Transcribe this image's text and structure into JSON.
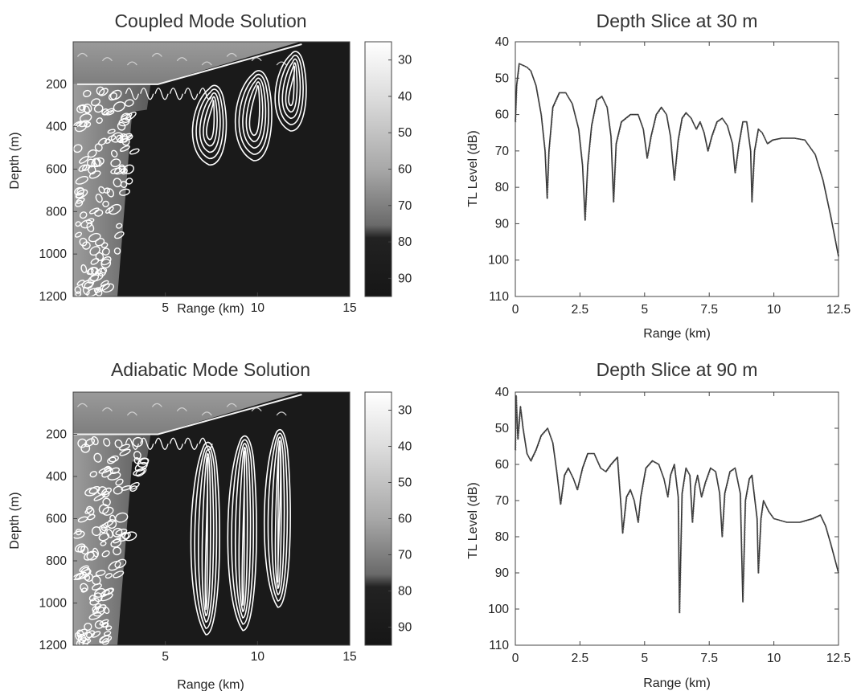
{
  "chart_data": [
    {
      "type": "heatmap",
      "title": "Coupled Mode Solution",
      "xlabel": "Range (km)",
      "ylabel": "Depth (m)",
      "xlim": [
        0,
        15
      ],
      "ylim": [
        1200,
        0
      ],
      "x_ticks": [
        "5",
        "10",
        "15"
      ],
      "y_ticks": [
        "200",
        "400",
        "600",
        "800",
        "1000",
        "1200"
      ],
      "colorbar_ticks": [
        "30",
        "40",
        "50",
        "60",
        "70",
        "80",
        "90"
      ],
      "colorbar_range": [
        25,
        95
      ],
      "colors": {
        "low": "#ffffff",
        "high": "#1a1a1a",
        "contour": "#ffffff"
      }
    },
    {
      "type": "line",
      "title": "Depth Slice at 30 m",
      "xlabel": "Range (km)",
      "ylabel": "TL Level (dB)",
      "xlim": [
        0,
        12.5
      ],
      "ylim": [
        110,
        40
      ],
      "x_ticks": [
        "0",
        "2.5",
        "5",
        "7.5",
        "10",
        "12.5"
      ],
      "y_ticks": [
        "40",
        "50",
        "60",
        "70",
        "80",
        "90",
        "100",
        "110"
      ],
      "series": [
        {
          "values": [
            [
              0,
              62
            ],
            [
              0.05,
              52
            ],
            [
              0.15,
              46
            ],
            [
              0.3,
              46.5
            ],
            [
              0.45,
              47
            ],
            [
              0.6,
              48
            ],
            [
              0.8,
              52
            ],
            [
              1.0,
              60
            ],
            [
              1.15,
              70
            ],
            [
              1.23,
              83
            ],
            [
              1.3,
              70
            ],
            [
              1.45,
              58
            ],
            [
              1.7,
              54
            ],
            [
              1.95,
              54
            ],
            [
              2.2,
              57
            ],
            [
              2.45,
              64
            ],
            [
              2.6,
              74
            ],
            [
              2.7,
              89
            ],
            [
              2.8,
              74
            ],
            [
              2.95,
              63
            ],
            [
              3.15,
              56
            ],
            [
              3.35,
              55
            ],
            [
              3.55,
              58
            ],
            [
              3.7,
              66
            ],
            [
              3.8,
              84
            ],
            [
              3.9,
              68
            ],
            [
              4.1,
              62
            ],
            [
              4.45,
              60
            ],
            [
              4.75,
              60
            ],
            [
              4.95,
              64
            ],
            [
              5.1,
              72
            ],
            [
              5.25,
              66
            ],
            [
              5.45,
              60
            ],
            [
              5.65,
              58
            ],
            [
              5.85,
              60
            ],
            [
              6.0,
              66
            ],
            [
              6.15,
              78
            ],
            [
              6.3,
              67
            ],
            [
              6.45,
              61
            ],
            [
              6.6,
              59.5
            ],
            [
              6.8,
              61
            ],
            [
              7.0,
              64
            ],
            [
              7.15,
              62
            ],
            [
              7.3,
              65
            ],
            [
              7.45,
              70
            ],
            [
              7.6,
              66
            ],
            [
              7.8,
              62
            ],
            [
              8.0,
              61
            ],
            [
              8.2,
              63
            ],
            [
              8.4,
              68
            ],
            [
              8.5,
              76
            ],
            [
              8.65,
              68
            ],
            [
              8.8,
              62
            ],
            [
              8.95,
              62
            ],
            [
              9.1,
              70
            ],
            [
              9.15,
              84
            ],
            [
              9.25,
              70
            ],
            [
              9.4,
              64
            ],
            [
              9.55,
              65
            ],
            [
              9.75,
              68
            ],
            [
              9.95,
              67
            ],
            [
              10.3,
              66.5
            ],
            [
              10.8,
              66.5
            ],
            [
              11.2,
              67
            ],
            [
              11.6,
              71
            ],
            [
              11.9,
              78
            ],
            [
              12.2,
              88
            ],
            [
              12.5,
              99
            ]
          ]
        }
      ]
    },
    {
      "type": "heatmap",
      "title": "Adiabatic Mode Solution",
      "xlabel": "Range (km)",
      "ylabel": "Depth (m)",
      "xlim": [
        0,
        15
      ],
      "ylim": [
        1200,
        0
      ],
      "x_ticks": [
        "5",
        "10",
        "15"
      ],
      "y_ticks": [
        "200",
        "400",
        "600",
        "800",
        "1000",
        "1200"
      ],
      "colorbar_ticks": [
        "30",
        "40",
        "50",
        "60",
        "70",
        "80",
        "90"
      ],
      "colorbar_range": [
        25,
        95
      ],
      "colors": {
        "low": "#ffffff",
        "high": "#1a1a1a",
        "contour": "#ffffff"
      }
    },
    {
      "type": "line",
      "title": "Depth Slice at 90 m",
      "xlabel": "Range (km)",
      "ylabel": "TL Level (dB)",
      "xlim": [
        0,
        12.5
      ],
      "ylim": [
        110,
        40
      ],
      "x_ticks": [
        "0",
        "2.5",
        "5",
        "7.5",
        "10",
        "12.5"
      ],
      "y_ticks": [
        "40",
        "50",
        "60",
        "70",
        "80",
        "90",
        "100",
        "110"
      ],
      "series": [
        {
          "values": [
            [
              0,
              56
            ],
            [
              0.03,
              41
            ],
            [
              0.1,
              53
            ],
            [
              0.2,
              44
            ],
            [
              0.3,
              50
            ],
            [
              0.45,
              57
            ],
            [
              0.6,
              59
            ],
            [
              0.8,
              56
            ],
            [
              1.0,
              52
            ],
            [
              1.25,
              50
            ],
            [
              1.45,
              54
            ],
            [
              1.6,
              62
            ],
            [
              1.75,
              71
            ],
            [
              1.9,
              63
            ],
            [
              2.05,
              61
            ],
            [
              2.25,
              64
            ],
            [
              2.4,
              67
            ],
            [
              2.6,
              61
            ],
            [
              2.8,
              57
            ],
            [
              3.05,
              57
            ],
            [
              3.3,
              61
            ],
            [
              3.5,
              62
            ],
            [
              3.7,
              60
            ],
            [
              3.95,
              58
            ],
            [
              4.1,
              73
            ],
            [
              4.15,
              79
            ],
            [
              4.3,
              69
            ],
            [
              4.45,
              67
            ],
            [
              4.6,
              70
            ],
            [
              4.75,
              76
            ],
            [
              4.85,
              69
            ],
            [
              5.05,
              61
            ],
            [
              5.3,
              59
            ],
            [
              5.55,
              60
            ],
            [
              5.75,
              64
            ],
            [
              5.9,
              69
            ],
            [
              6.0,
              63
            ],
            [
              6.15,
              60
            ],
            [
              6.3,
              69
            ],
            [
              6.35,
              101
            ],
            [
              6.45,
              68
            ],
            [
              6.6,
              61
            ],
            [
              6.75,
              63
            ],
            [
              6.85,
              76
            ],
            [
              6.95,
              66
            ],
            [
              7.05,
              63
            ],
            [
              7.2,
              69
            ],
            [
              7.35,
              65
            ],
            [
              7.55,
              61
            ],
            [
              7.75,
              62
            ],
            [
              7.9,
              68
            ],
            [
              8.0,
              80
            ],
            [
              8.1,
              68
            ],
            [
              8.3,
              62
            ],
            [
              8.5,
              61
            ],
            [
              8.7,
              68
            ],
            [
              8.8,
              98
            ],
            [
              8.9,
              70
            ],
            [
              9.05,
              64
            ],
            [
              9.15,
              63
            ],
            [
              9.35,
              75
            ],
            [
              9.4,
              90
            ],
            [
              9.5,
              75
            ],
            [
              9.6,
              70
            ],
            [
              9.8,
              73
            ],
            [
              10.0,
              75
            ],
            [
              10.5,
              76
            ],
            [
              11.0,
              76
            ],
            [
              11.5,
              75
            ],
            [
              11.8,
              74
            ],
            [
              12.0,
              77
            ],
            [
              12.2,
              82
            ],
            [
              12.5,
              90
            ]
          ]
        }
      ]
    }
  ]
}
